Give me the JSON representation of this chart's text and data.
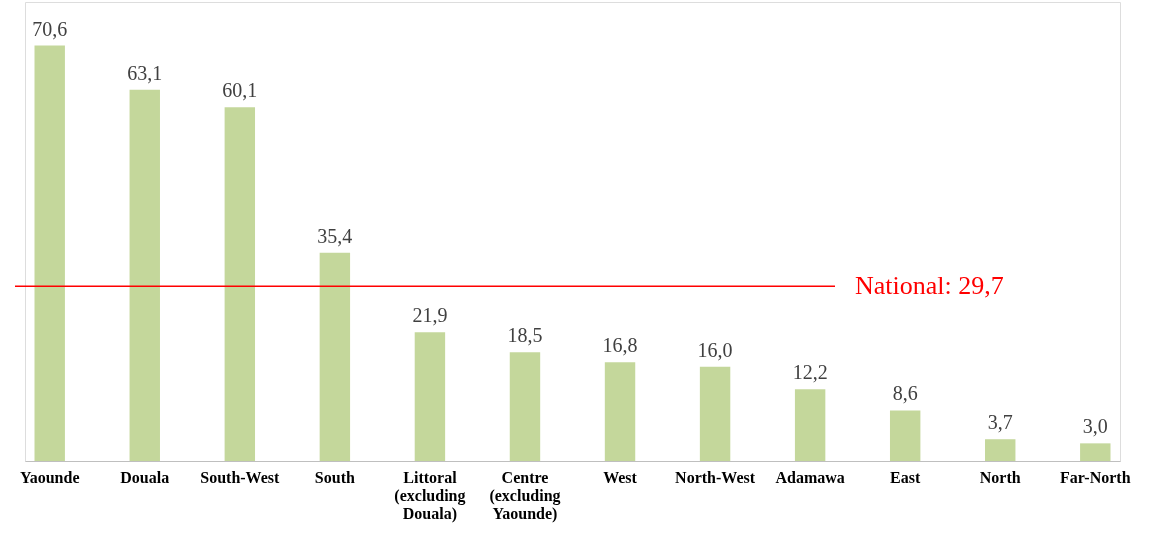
{
  "chart_data": {
    "type": "bar",
    "categories": [
      "Yaounde",
      "Douala",
      "South-West",
      "South",
      "Littoral (excluding Douala)",
      "Centre (excluding Yaounde)",
      "West",
      "North-West",
      "Adamawa",
      "East",
      "North",
      "Far-North"
    ],
    "values": [
      70.6,
      63.1,
      60.1,
      35.4,
      21.9,
      18.5,
      16.8,
      16.0,
      12.2,
      8.6,
      3.7,
      3.0
    ],
    "value_labels": [
      "70,6",
      "63,1",
      "60,1",
      "35,4",
      "21,9",
      "18,5",
      "16,8",
      "16,0",
      "12,2",
      "8,6",
      "3,7",
      "3,0"
    ],
    "color": "#c4d79b",
    "ylim": [
      0,
      78
    ],
    "grid": false,
    "ref_lines": [
      {
        "axis": "y",
        "value": 29.7,
        "label": "National: 29,7",
        "color": "#ff0000"
      }
    ]
  }
}
